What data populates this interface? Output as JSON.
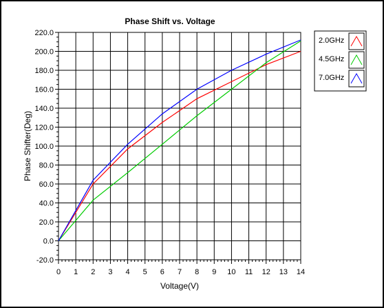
{
  "chart_data": {
    "type": "line",
    "title": "Phase Shift vs. Voltage",
    "xlabel": "Voltage(V)",
    "ylabel": "Phase Shifter(Deg)",
    "xlim": [
      0,
      14
    ],
    "ylim": [
      -20,
      220
    ],
    "x_ticks": [
      0,
      1,
      2,
      3,
      4,
      5,
      6,
      7,
      8,
      9,
      10,
      11,
      12,
      13,
      14
    ],
    "x_tick_labels": [
      "0",
      "1",
      "2",
      "3",
      "4",
      "5",
      "6",
      "7",
      "8",
      "9",
      "10",
      "11",
      "12",
      "13",
      "14"
    ],
    "y_ticks": [
      -20,
      0,
      20,
      40,
      60,
      80,
      100,
      120,
      140,
      160,
      180,
      200,
      220
    ],
    "y_tick_labels": [
      "-20.0",
      "0.0",
      "20.0",
      "40.0",
      "60.0",
      "80.0",
      "100.0",
      "120.0",
      "140.0",
      "160.0",
      "180.0",
      "200.0",
      "220.0"
    ],
    "grid": true,
    "legend_position": "top-right",
    "x": [
      0,
      2,
      4,
      6,
      8,
      10,
      12,
      14
    ],
    "series": [
      {
        "name": "2.0GHz",
        "color": "#ff0000",
        "values": [
          0,
          60,
          97,
          125,
          150,
          168,
          186,
          200
        ]
      },
      {
        "name": "4.5GHz",
        "color": "#00cc00",
        "values": [
          0,
          43,
          72,
          102,
          132,
          160,
          188,
          211
        ]
      },
      {
        "name": "7.0GHz",
        "color": "#0000ff",
        "values": [
          0,
          64,
          102,
          134,
          160,
          180,
          197,
          212
        ]
      }
    ]
  }
}
